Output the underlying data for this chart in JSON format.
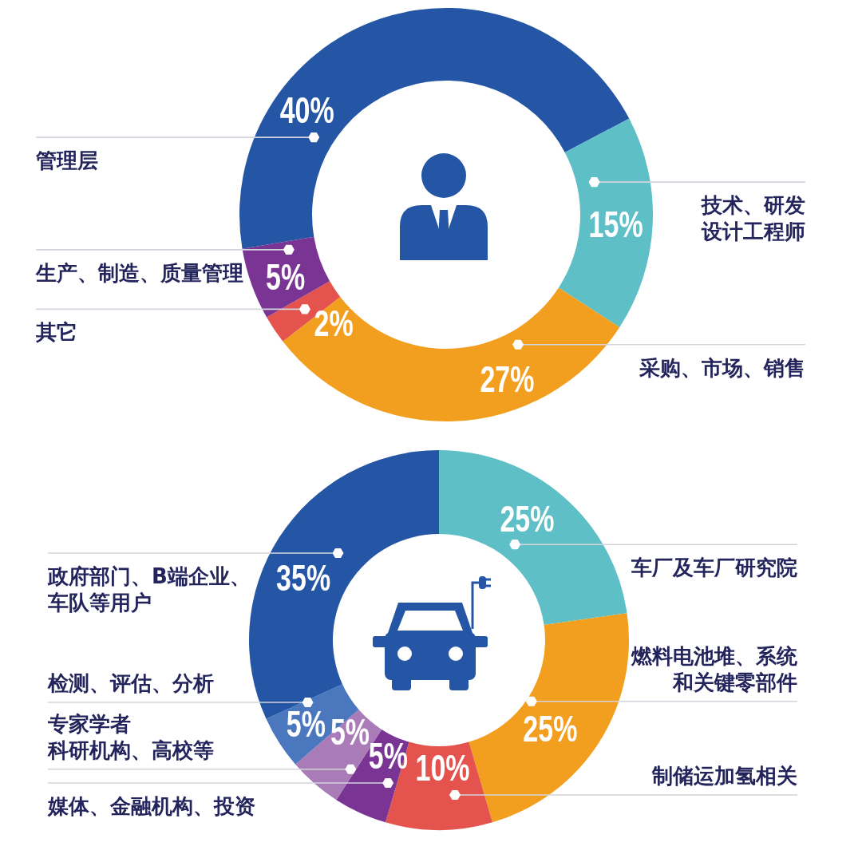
{
  "chart_data": [
    {
      "type": "donut",
      "categories": [
        "管理层",
        "技术、研发设计工程师",
        "采购、市场、销售",
        "其它",
        "生产、制造、质量管理"
      ],
      "values": [
        40,
        15,
        27,
        2,
        5
      ],
      "colors": [
        "#2456a5",
        "#5ebfc6",
        "#f29f1f",
        "#e4534d",
        "#7a3594"
      ],
      "value_labels": [
        "40%",
        "15%",
        "27%",
        "2%",
        "5%"
      ]
    },
    {
      "type": "donut",
      "categories": [
        "车厂及车厂研究院",
        "燃料电池堆、系统和关键零部件",
        "制储运加氢相关",
        "媒体、金融机构、投资",
        "专家学者科研机构、高校等",
        "检测、评估、分析",
        "政府部门、B端企业、车队等用户"
      ],
      "values": [
        25,
        25,
        10,
        5,
        5,
        5,
        35
      ],
      "colors": [
        "#5ebfc6",
        "#f29f1f",
        "#e4534d",
        "#7a3594",
        "#a97cb8",
        "#4b77bf",
        "#2456a5"
      ],
      "value_labels": [
        "25%",
        "25%",
        "10%",
        "5%",
        "5%",
        "5%",
        "35%"
      ]
    }
  ]
}
